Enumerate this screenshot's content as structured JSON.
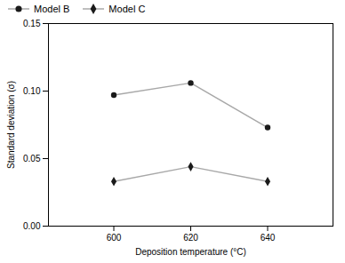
{
  "chart_data": {
    "type": "line",
    "x": [
      600,
      620,
      640
    ],
    "series": [
      {
        "name": "Model B",
        "color": "#a8a8a8",
        "marker": "circle",
        "values": [
          0.097,
          0.106,
          0.073
        ]
      },
      {
        "name": "Model C",
        "color": "#a8a8a8",
        "marker": "diamond",
        "values": [
          0.033,
          0.044,
          0.033
        ]
      }
    ],
    "xlabel": "Deposition temperature (°C)",
    "ylabel": "Standard deviation (σ)",
    "xlim": [
      583,
      657
    ],
    "ylim": [
      0.0,
      0.15
    ],
    "xticks": [
      600,
      620,
      640
    ],
    "yticks": [
      {
        "value": 0,
        "label": "0.00"
      },
      {
        "value": 0.05,
        "label": "0.05"
      },
      {
        "value": 0.1,
        "label": "0.10"
      },
      {
        "value": 0.15,
        "label": "0.15"
      }
    ],
    "grid": false,
    "legend": "upper left"
  }
}
